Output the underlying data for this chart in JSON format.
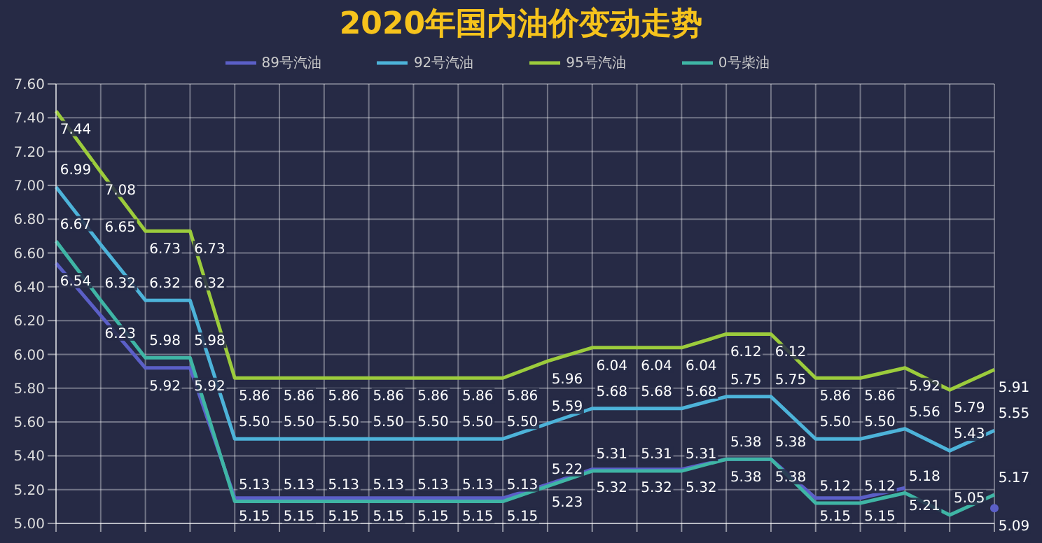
{
  "chart_data": {
    "type": "line",
    "title": "2020年国内油价变动走势",
    "categories": [
      null,
      null,
      null,
      null,
      null,
      null,
      null,
      null,
      null,
      null,
      null,
      null,
      null,
      null,
      null,
      null,
      null,
      null,
      null,
      null,
      null,
      null
    ],
    "series": [
      {
        "name": "89号汽油",
        "color": "#5b5fc7",
        "values": [
          6.54,
          6.23,
          5.92,
          5.92,
          5.15,
          5.15,
          5.15,
          5.15,
          5.15,
          5.15,
          5.15,
          5.23,
          5.32,
          5.32,
          5.32,
          5.38,
          5.38,
          5.15,
          5.15,
          5.21,
          null,
          5.09
        ],
        "value_labels": [
          "6.54",
          "6.23",
          "5.92",
          "5.92",
          "5.15",
          "5.15",
          "5.15",
          "5.15",
          "5.15",
          "5.15",
          "5.15",
          "5.23",
          "5.32",
          "5.32",
          "5.32",
          "5.38",
          "5.38",
          "5.15",
          "5.15",
          "5.21",
          null,
          "5.09"
        ]
      },
      {
        "name": "92号汽油",
        "color": "#4db3d9",
        "values": [
          6.99,
          6.65,
          6.32,
          6.32,
          5.5,
          5.5,
          5.5,
          5.5,
          5.5,
          5.5,
          5.5,
          5.59,
          5.68,
          5.68,
          5.68,
          5.75,
          5.75,
          5.5,
          5.5,
          5.56,
          5.43,
          5.55
        ],
        "value_labels": [
          "6.99",
          "6.65",
          "6.32",
          "6.32",
          "5.50",
          "5.50",
          "5.50",
          "5.50",
          "5.50",
          "5.50",
          "5.50",
          "5.59",
          "5.68",
          "5.68",
          "5.68",
          "5.75",
          "5.75",
          "5.50",
          "5.50",
          "5.56",
          "5.43",
          "5.55"
        ]
      },
      {
        "name": "95号汽油",
        "color": "#9ccc3c",
        "values": [
          7.44,
          7.08,
          6.73,
          6.73,
          5.86,
          5.86,
          5.86,
          5.86,
          5.86,
          5.86,
          5.86,
          5.96,
          6.04,
          6.04,
          6.04,
          6.12,
          6.12,
          5.86,
          5.86,
          5.92,
          5.79,
          5.91
        ],
        "value_labels": [
          "7.44",
          "7.08",
          "6.73",
          "6.73",
          "5.86",
          "5.86",
          "5.86",
          "5.86",
          "5.86",
          "5.86",
          "5.86",
          "5.96",
          "6.04",
          "6.04",
          "6.04",
          "6.12",
          "6.12",
          "5.86",
          "5.86",
          "5.92",
          "5.79",
          "5.91"
        ]
      },
      {
        "name": "0号柴油",
        "color": "#3fb5a5",
        "values": [
          6.67,
          6.32,
          5.98,
          5.98,
          5.13,
          5.13,
          5.13,
          5.13,
          5.13,
          5.13,
          5.13,
          5.22,
          5.31,
          5.31,
          5.31,
          5.38,
          5.38,
          5.12,
          5.12,
          5.18,
          5.05,
          5.17
        ],
        "value_labels": [
          "6.67",
          "6.32",
          "5.98",
          "5.98",
          "5.13",
          "5.13",
          "5.13",
          "5.13",
          "5.13",
          "5.13",
          "5.13",
          "5.22",
          "5.31",
          "5.31",
          "5.31",
          "5.38",
          "5.38",
          "5.12",
          "5.12",
          "5.18",
          "5.05",
          "5.17"
        ]
      }
    ],
    "ylim": [
      5.0,
      7.6
    ],
    "yticks": [
      {
        "value": 5.0,
        "label": "5.00"
      },
      {
        "value": 5.2,
        "label": "5.20"
      },
      {
        "value": 5.4,
        "label": "5.40"
      },
      {
        "value": 5.6,
        "label": "5.60"
      },
      {
        "value": 5.8,
        "label": "5.80"
      },
      {
        "value": 6.0,
        "label": "6.00"
      },
      {
        "value": 6.2,
        "label": "6.20"
      },
      {
        "value": 6.4,
        "label": "6.40"
      },
      {
        "value": 6.6,
        "label": "6.60"
      },
      {
        "value": 6.8,
        "label": "6.80"
      },
      {
        "value": 7.0,
        "label": "7.00"
      },
      {
        "value": 7.2,
        "label": "7.20"
      },
      {
        "value": 7.4,
        "label": "7.40"
      },
      {
        "value": 7.6,
        "label": "7.60"
      }
    ],
    "grid": true,
    "legend": "top",
    "marker": "none"
  }
}
